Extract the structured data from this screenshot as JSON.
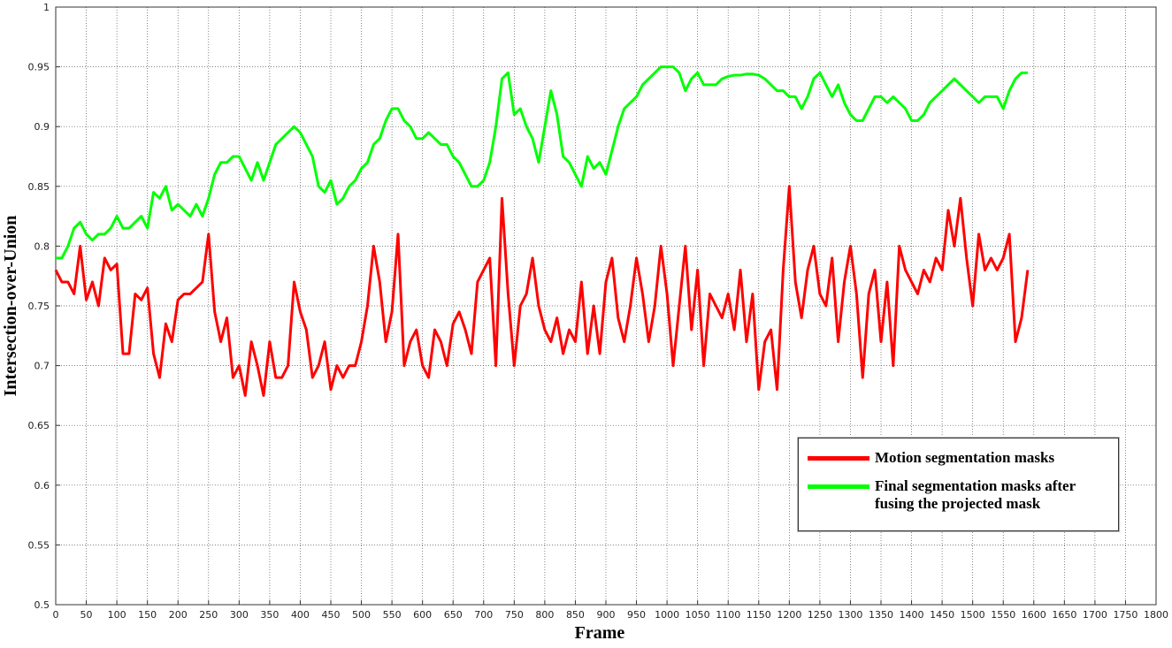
{
  "chart_data": {
    "type": "line",
    "x_label": "Frame",
    "y_label": "Intersection-over-Union",
    "x": [
      0,
      10,
      20,
      30,
      40,
      50,
      60,
      70,
      80,
      90,
      100,
      110,
      120,
      130,
      140,
      150,
      160,
      170,
      180,
      190,
      200,
      210,
      220,
      230,
      240,
      250,
      260,
      270,
      280,
      290,
      300,
      310,
      320,
      330,
      340,
      350,
      360,
      370,
      380,
      390,
      400,
      410,
      420,
      430,
      440,
      450,
      460,
      470,
      480,
      490,
      500,
      510,
      520,
      530,
      540,
      550,
      560,
      570,
      580,
      590,
      600,
      610,
      620,
      630,
      640,
      650,
      660,
      670,
      680,
      690,
      700,
      710,
      720,
      730,
      740,
      750,
      760,
      770,
      780,
      790,
      800,
      810,
      820,
      830,
      840,
      850,
      860,
      870,
      880,
      890,
      900,
      910,
      920,
      930,
      940,
      950,
      960,
      970,
      980,
      990,
      1000,
      1010,
      1020,
      1030,
      1040,
      1050,
      1060,
      1070,
      1080,
      1090,
      1100,
      1110,
      1120,
      1130,
      1140,
      1150,
      1160,
      1170,
      1180,
      1190,
      1200,
      1210,
      1220,
      1230,
      1240,
      1250,
      1260,
      1270,
      1280,
      1290,
      1300,
      1310,
      1320,
      1330,
      1340,
      1350,
      1360,
      1370,
      1380,
      1390,
      1400,
      1410,
      1420,
      1430,
      1440,
      1450,
      1460,
      1470,
      1480,
      1490,
      1500,
      1510,
      1520,
      1530,
      1540,
      1550,
      1560,
      1570,
      1580,
      1590
    ],
    "series": [
      {
        "name": "Motion segmentation masks",
        "color": "#ff0000",
        "values": [
          0.78,
          0.77,
          0.77,
          0.76,
          0.8,
          0.755,
          0.77,
          0.75,
          0.79,
          0.78,
          0.785,
          0.71,
          0.71,
          0.76,
          0.755,
          0.765,
          0.71,
          0.69,
          0.735,
          0.72,
          0.755,
          0.76,
          0.76,
          0.765,
          0.77,
          0.81,
          0.745,
          0.72,
          0.74,
          0.69,
          0.7,
          0.675,
          0.72,
          0.7,
          0.675,
          0.72,
          0.69,
          0.69,
          0.7,
          0.77,
          0.745,
          0.73,
          0.69,
          0.7,
          0.72,
          0.68,
          0.7,
          0.69,
          0.7,
          0.7,
          0.72,
          0.75,
          0.8,
          0.77,
          0.72,
          0.745,
          0.81,
          0.7,
          0.72,
          0.73,
          0.7,
          0.69,
          0.73,
          0.72,
          0.7,
          0.735,
          0.745,
          0.73,
          0.71,
          0.77,
          0.78,
          0.79,
          0.7,
          0.84,
          0.76,
          0.7,
          0.75,
          0.76,
          0.79,
          0.75,
          0.73,
          0.72,
          0.74,
          0.71,
          0.73,
          0.72,
          0.77,
          0.71,
          0.75,
          0.71,
          0.77,
          0.79,
          0.74,
          0.72,
          0.75,
          0.79,
          0.76,
          0.72,
          0.75,
          0.8,
          0.76,
          0.7,
          0.75,
          0.8,
          0.73,
          0.78,
          0.7,
          0.76,
          0.75,
          0.74,
          0.76,
          0.73,
          0.78,
          0.72,
          0.76,
          0.68,
          0.72,
          0.73,
          0.68,
          0.78,
          0.85,
          0.77,
          0.74,
          0.78,
          0.8,
          0.76,
          0.75,
          0.79,
          0.72,
          0.77,
          0.8,
          0.76,
          0.69,
          0.76,
          0.78,
          0.72,
          0.77,
          0.7,
          0.8,
          0.78,
          0.77,
          0.76,
          0.78,
          0.77,
          0.79,
          0.78,
          0.83,
          0.8,
          0.84,
          0.79,
          0.75,
          0.81,
          0.78,
          0.79,
          0.78,
          0.79,
          0.81,
          0.72,
          0.74,
          0.78
        ]
      },
      {
        "name": "Final segmentation masks after fusing the projected mask",
        "color": "#00ff00",
        "values": [
          0.79,
          0.79,
          0.8,
          0.815,
          0.82,
          0.81,
          0.805,
          0.81,
          0.81,
          0.815,
          0.825,
          0.815,
          0.815,
          0.82,
          0.825,
          0.815,
          0.845,
          0.84,
          0.85,
          0.83,
          0.835,
          0.83,
          0.825,
          0.835,
          0.825,
          0.84,
          0.86,
          0.87,
          0.87,
          0.875,
          0.875,
          0.865,
          0.855,
          0.87,
          0.855,
          0.87,
          0.885,
          0.89,
          0.895,
          0.9,
          0.895,
          0.885,
          0.875,
          0.85,
          0.845,
          0.855,
          0.835,
          0.84,
          0.85,
          0.855,
          0.865,
          0.87,
          0.885,
          0.89,
          0.905,
          0.915,
          0.915,
          0.905,
          0.9,
          0.89,
          0.89,
          0.895,
          0.89,
          0.885,
          0.885,
          0.875,
          0.87,
          0.86,
          0.85,
          0.85,
          0.855,
          0.87,
          0.9,
          0.94,
          0.945,
          0.91,
          0.915,
          0.9,
          0.89,
          0.87,
          0.9,
          0.93,
          0.91,
          0.875,
          0.87,
          0.86,
          0.85,
          0.875,
          0.865,
          0.87,
          0.86,
          0.88,
          0.9,
          0.915,
          0.92,
          0.925,
          0.935,
          0.94,
          0.945,
          0.95,
          0.95,
          0.95,
          0.945,
          0.93,
          0.94,
          0.945,
          0.935,
          0.935,
          0.935,
          0.94,
          0.942,
          0.943,
          0.943,
          0.944,
          0.944,
          0.943,
          0.94,
          0.935,
          0.93,
          0.93,
          0.925,
          0.925,
          0.915,
          0.925,
          0.94,
          0.945,
          0.935,
          0.925,
          0.935,
          0.92,
          0.91,
          0.905,
          0.905,
          0.915,
          0.925,
          0.925,
          0.92,
          0.925,
          0.92,
          0.915,
          0.905,
          0.905,
          0.91,
          0.92,
          0.925,
          0.93,
          0.935,
          0.94,
          0.935,
          0.93,
          0.925,
          0.92,
          0.925,
          0.925,
          0.925,
          0.915,
          0.93,
          0.94,
          0.945,
          0.945
        ]
      }
    ],
    "xlim": [
      0,
      1800
    ],
    "ylim": [
      0.5,
      1
    ],
    "xticks": [
      0,
      50,
      100,
      150,
      200,
      250,
      300,
      350,
      400,
      450,
      500,
      550,
      600,
      650,
      700,
      750,
      800,
      850,
      900,
      950,
      1000,
      1050,
      1100,
      1150,
      1200,
      1250,
      1300,
      1350,
      1400,
      1450,
      1500,
      1550,
      1600,
      1650,
      1700,
      1750,
      1800
    ],
    "yticks": [
      0.5,
      0.55,
      0.6,
      0.65,
      0.7,
      0.75,
      0.8,
      0.85,
      0.9,
      0.95,
      1
    ],
    "grid": true,
    "legend": "lower right"
  }
}
